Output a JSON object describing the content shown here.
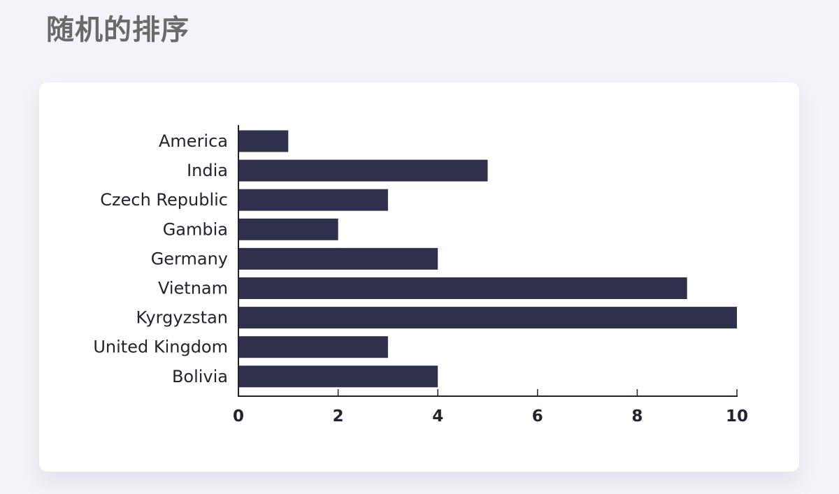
{
  "page": {
    "title": "随机的排序"
  },
  "chart_data": {
    "type": "bar",
    "orientation": "horizontal",
    "categories": [
      "America",
      "India",
      "Czech Republic",
      "Gambia",
      "Germany",
      "Vietnam",
      "Kyrgyzstan",
      "United Kingdom",
      "Bolivia"
    ],
    "values": [
      1,
      5,
      3,
      2,
      4,
      9,
      10,
      3,
      4
    ],
    "xlim": [
      0,
      10
    ],
    "xticks": [
      0,
      2,
      4,
      6,
      8,
      10
    ],
    "title": "",
    "xlabel": "",
    "ylabel": "",
    "grid": false,
    "legend": "none",
    "bar_color": "#30304d"
  }
}
